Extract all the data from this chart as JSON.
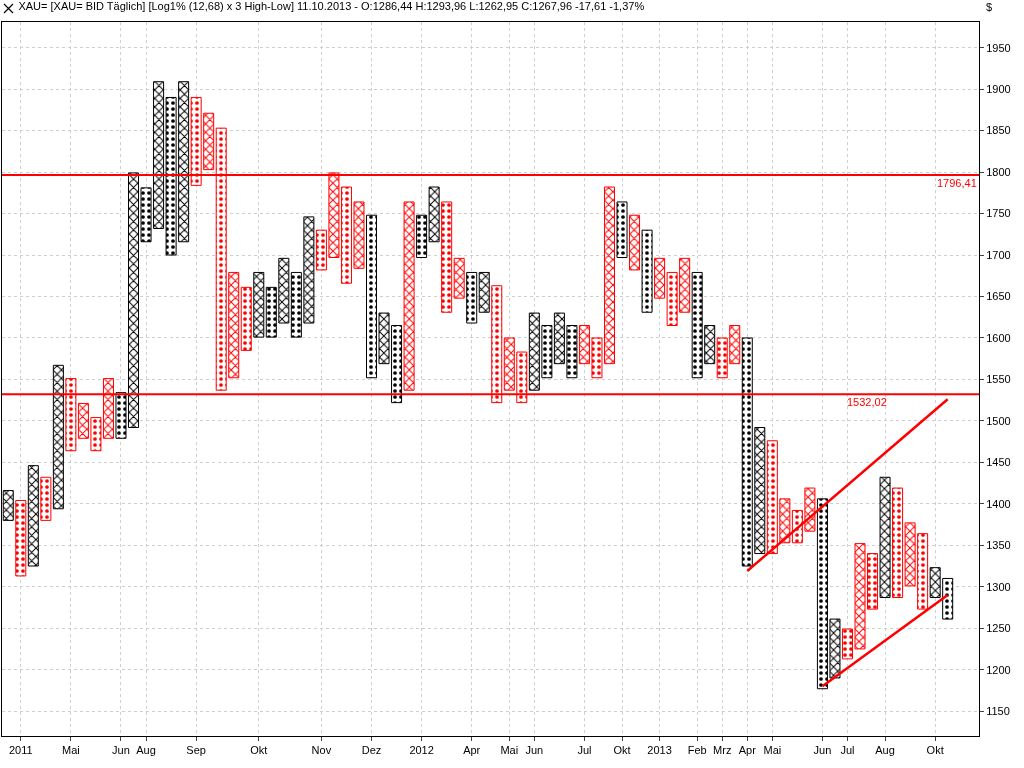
{
  "chart_data": {
    "type": "bar",
    "title": "XAU= [XAU= BID Täglich] [Log1% (12,68) x 3 High-Low] 11.10.2013 - O:1286,44 H:1293,96 L:1262,95 C:1267,96 -17,61 -1,37%",
    "ylabel": "$",
    "categories": [
      null,
      "2011",
      null,
      null,
      null,
      "Mai",
      null,
      null,
      null,
      "Jun",
      null,
      "Aug",
      null,
      null,
      null,
      "Sep",
      null,
      null,
      null,
      null,
      "Okt",
      null,
      null,
      null,
      null,
      "Nov",
      null,
      null,
      null,
      "Dez",
      null,
      null,
      null,
      "2012",
      null,
      null,
      null,
      "Apr",
      null,
      null,
      "Mai",
      null,
      "Jun",
      null,
      null,
      null,
      "Jul",
      null,
      null,
      "Okt",
      null,
      null,
      "2013",
      null,
      null,
      "Feb",
      null,
      "Mrz",
      null,
      "Apr",
      null,
      "Mai",
      null,
      null,
      null,
      "Jun",
      null,
      "Jul",
      null,
      null,
      "Aug",
      null,
      null,
      null,
      "Okt",
      null
    ],
    "ylim": [
      1120,
      1981
    ],
    "yticks": [
      1150,
      1200,
      1250,
      1300,
      1350,
      1400,
      1450,
      1500,
      1550,
      1600,
      1650,
      1700,
      1750,
      1800,
      1850,
      1900,
      1950
    ],
    "grid": true,
    "series": [
      {
        "marker": "cross",
        "values": [
          36,
          null,
          121,
          null,
          173,
          null,
          42,
          null,
          72,
          null,
          307,
          null,
          177,
          null,
          193,
          null,
          68,
          null,
          127,
          null,
          78,
          null,
          78,
          null,
          128,
          null,
          102,
          null,
          80,
          null,
          61,
          null,
          227,
          null,
          66,
          null,
          48,
          null,
          48,
          null,
          63,
          null,
          93,
          null,
          61,
          null,
          46,
          null,
          213,
          null,
          66,
          null,
          48,
          null,
          65,
          null,
          46,
          null,
          46,
          null,
          152,
          null,
          53,
          null,
          52,
          null,
          71,
          null,
          127,
          null,
          145,
          null,
          76,
          null,
          36,
          null
        ],
        "base": [
          1380,
          null,
          1325,
          null,
          1394,
          null,
          1479,
          null,
          1479,
          null,
          1492,
          null,
          1732,
          null,
          1716,
          null,
          1803,
          null,
          1552,
          null,
          1601,
          null,
          1618,
          null,
          1618,
          null,
          1697,
          null,
          1684,
          null,
          1569,
          null,
          1537,
          null,
          1716,
          null,
          1648,
          null,
          1631,
          null,
          1537,
          null,
          1537,
          null,
          1569,
          null,
          1569,
          null,
          1569,
          null,
          1682,
          null,
          1648,
          null,
          1631,
          null,
          1569,
          null,
          1569,
          null,
          1340,
          null,
          1353,
          null,
          1367,
          null,
          1190,
          null,
          1225,
          null,
          1287,
          null,
          1301,
          null,
          1287,
          null
        ],
        "colors": [
          "#000000",
          null,
          "#000000",
          null,
          "#000000",
          null,
          "#ff0000",
          null,
          "#ff0000",
          null,
          "#000000",
          null,
          "#000000",
          null,
          "#000000",
          null,
          "#ff0000",
          null,
          "#ff0000",
          null,
          "#000000",
          null,
          "#000000",
          null,
          "#000000",
          null,
          "#ff0000",
          null,
          "#ff0000",
          null,
          "#000000",
          null,
          "#ff0000",
          null,
          "#000000",
          null,
          "#ff0000",
          null,
          "#000000",
          null,
          "#ff0000",
          null,
          "#000000",
          null,
          "#000000",
          null,
          "#ff0000",
          null,
          "#ff0000",
          null,
          "#ff0000",
          null,
          "#ff0000",
          null,
          "#ff0000",
          null,
          "#000000",
          null,
          "#ff0000",
          null,
          "#000000",
          null,
          "#ff0000",
          null,
          "#ff0000",
          null,
          "#000000",
          null,
          "#ff0000",
          null,
          "#000000",
          null,
          "#ff0000",
          null,
          "#000000",
          null
        ]
      },
      {
        "marker": "circle",
        "values": [
          null,
          91,
          null,
          52,
          null,
          87,
          null,
          40,
          null,
          55,
          null,
          65,
          null,
          190,
          null,
          106,
          null,
          316,
          null,
          76,
          null,
          60,
          null,
          78,
          null,
          48,
          null,
          116,
          null,
          196,
          null,
          93,
          null,
          51,
          null,
          133,
          null,
          61,
          null,
          141,
          null,
          61,
          null,
          63,
          null,
          63,
          null,
          48,
          null,
          67,
          null,
          99,
          null,
          64,
          null,
          127,
          null,
          48,
          null,
          275,
          null,
          136,
          null,
          39,
          null,
          229,
          null,
          36,
          null,
          67,
          null,
          132,
          null,
          91,
          null,
          49
        ],
        "base": [
          null,
          1313,
          null,
          1380,
          null,
          1464,
          null,
          1464,
          null,
          1479,
          null,
          1716,
          null,
          1700,
          null,
          1784,
          null,
          1537,
          null,
          1585,
          null,
          1601,
          null,
          1601,
          null,
          1682,
          null,
          1666,
          null,
          1552,
          null,
          1522,
          null,
          1697,
          null,
          1631,
          null,
          1618,
          null,
          1522,
          null,
          1522,
          null,
          1552,
          null,
          1552,
          null,
          1552,
          null,
          1697,
          null,
          1631,
          null,
          1615,
          null,
          1552,
          null,
          1552,
          null,
          1325,
          null,
          1340,
          null,
          1353,
          null,
          1177,
          null,
          1213,
          null,
          1273,
          null,
          1287,
          null,
          1273,
          null,
          1261
        ],
        "colors": [
          null,
          "#ff0000",
          null,
          "#ff0000",
          null,
          "#ff0000",
          null,
          "#ff0000",
          null,
          "#000000",
          null,
          "#000000",
          null,
          "#000000",
          null,
          "#ff0000",
          null,
          "#ff0000",
          null,
          "#ff0000",
          null,
          "#000000",
          null,
          "#000000",
          null,
          "#ff0000",
          null,
          "#ff0000",
          null,
          "#000000",
          null,
          "#000000",
          null,
          "#000000",
          null,
          "#ff0000",
          null,
          "#000000",
          null,
          "#ff0000",
          null,
          "#ff0000",
          null,
          "#000000",
          null,
          "#000000",
          null,
          "#ff0000",
          null,
          "#000000",
          null,
          "#000000",
          null,
          "#ff0000",
          null,
          "#000000",
          null,
          "#ff0000",
          null,
          "#000000",
          null,
          "#ff0000",
          null,
          "#ff0000",
          null,
          "#000000",
          null,
          "#ff0000",
          null,
          "#ff0000",
          null,
          "#ff0000",
          null,
          "#ff0000",
          null,
          "#000000"
        ]
      },
      {
        "type": "line",
        "color": "#ff0000",
        "values": [
          null,
          null,
          null,
          null,
          null,
          null,
          null,
          null,
          null,
          null,
          null,
          null,
          null,
          null,
          null,
          null,
          null,
          null,
          null,
          null,
          null,
          null,
          null,
          null,
          null,
          null,
          null,
          null,
          null,
          null,
          null,
          null,
          null,
          null,
          null,
          null,
          null,
          null,
          null,
          null,
          null,
          null,
          null,
          null,
          null,
          null,
          null,
          null,
          null,
          null,
          null,
          null,
          null,
          null,
          null,
          null,
          null,
          null,
          null,
          1319,
          null,
          null,
          null,
          null,
          null,
          null,
          null,
          null,
          null,
          null,
          null,
          null,
          null,
          null,
          null,
          1526
        ]
      },
      {
        "type": "line",
        "color": "#ff0000",
        "values": [
          null,
          null,
          null,
          null,
          null,
          null,
          null,
          null,
          null,
          null,
          null,
          null,
          null,
          null,
          null,
          null,
          null,
          null,
          null,
          null,
          null,
          null,
          null,
          null,
          null,
          null,
          null,
          null,
          null,
          null,
          null,
          null,
          null,
          null,
          null,
          null,
          null,
          null,
          null,
          null,
          null,
          null,
          null,
          null,
          null,
          null,
          null,
          null,
          null,
          null,
          null,
          null,
          null,
          null,
          null,
          null,
          null,
          null,
          null,
          null,
          null,
          null,
          null,
          null,
          null,
          1180,
          null,
          null,
          null,
          null,
          null,
          null,
          null,
          null,
          null,
          1290
        ]
      }
    ],
    "ref_lines": [
      {
        "axis": "y",
        "value": 1796.41,
        "label": "1796,41",
        "color": "#ff0000"
      },
      {
        "axis": "y",
        "value": 1532.02,
        "label": "1532,02",
        "color": "#ff0000"
      }
    ]
  }
}
